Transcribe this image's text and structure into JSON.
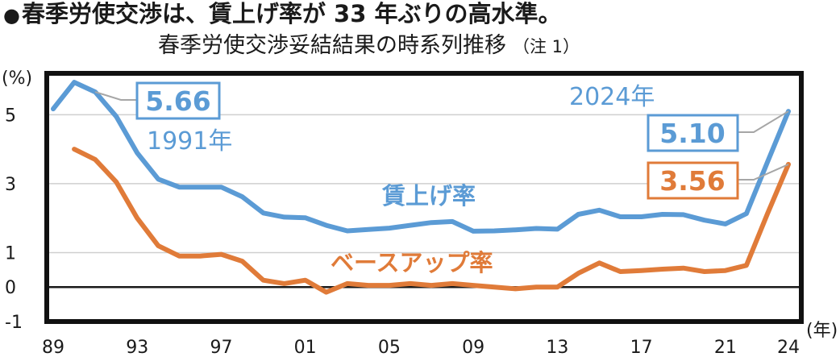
{
  "header": {
    "bullet": "●",
    "headline": "春季労使交渉は、賃上げ率が 33 年ぶりの高水準。",
    "subtitle": "春季労使交渉妥結結果の時系列推移",
    "subtitle_note": "（注 1）"
  },
  "chart_data": {
    "type": "line",
    "y_unit_label": "(%)",
    "x_unit_label": "(年)",
    "ylim": [
      -1,
      6.2
    ],
    "xlim": [
      1989,
      2024
    ],
    "x_ticks": [
      {
        "value": 1989,
        "label": "89"
      },
      {
        "value": 1993,
        "label": "93"
      },
      {
        "value": 1997,
        "label": "97"
      },
      {
        "value": 2001,
        "label": "01"
      },
      {
        "value": 2005,
        "label": "05"
      },
      {
        "value": 2009,
        "label": "09"
      },
      {
        "value": 2013,
        "label": "13"
      },
      {
        "value": 2017,
        "label": "17"
      },
      {
        "value": 2021,
        "label": "21"
      },
      {
        "value": 2024,
        "label": "24"
      }
    ],
    "y_ticks": [
      {
        "value": 5,
        "label": "5"
      },
      {
        "value": 3,
        "label": "3"
      },
      {
        "value": 1,
        "label": "1"
      },
      {
        "value": 0,
        "label": "0"
      },
      {
        "value": -1,
        "label": "-1"
      }
    ],
    "grid": "horizontal",
    "zero_line": true,
    "series": [
      {
        "name": "賃上げ率",
        "color": "#5b9bd5",
        "x": [
          1989,
          1990,
          1991,
          1992,
          1993,
          1994,
          1995,
          1996,
          1997,
          1998,
          1999,
          2000,
          2001,
          2002,
          2003,
          2004,
          2005,
          2006,
          2007,
          2008,
          2009,
          2010,
          2011,
          2012,
          2013,
          2014,
          2015,
          2016,
          2017,
          2018,
          2019,
          2020,
          2021,
          2022,
          2023,
          2024
        ],
        "values": [
          5.17,
          5.94,
          5.66,
          4.95,
          3.89,
          3.13,
          2.9,
          2.9,
          2.9,
          2.62,
          2.15,
          2.03,
          2.01,
          1.79,
          1.63,
          1.67,
          1.71,
          1.79,
          1.87,
          1.9,
          1.62,
          1.63,
          1.66,
          1.7,
          1.68,
          2.11,
          2.23,
          2.04,
          2.04,
          2.11,
          2.1,
          1.94,
          1.83,
          2.13,
          3.62,
          5.1
        ]
      },
      {
        "name": "ベースアップ率",
        "color": "#e07b39",
        "x": [
          1990,
          1991,
          1992,
          1993,
          1994,
          1995,
          1996,
          1997,
          1998,
          1999,
          2000,
          2001,
          2002,
          2003,
          2004,
          2005,
          2006,
          2007,
          2008,
          2009,
          2010,
          2011,
          2012,
          2013,
          2014,
          2015,
          2016,
          2017,
          2018,
          2019,
          2020,
          2021,
          2022,
          2023,
          2024
        ],
        "values": [
          4.0,
          3.7,
          3.05,
          2.0,
          1.2,
          0.9,
          0.9,
          0.95,
          0.75,
          0.2,
          0.1,
          0.2,
          -0.15,
          0.1,
          0.05,
          0.05,
          0.1,
          0.05,
          0.1,
          0.05,
          0.0,
          -0.05,
          0.0,
          0.0,
          0.4,
          0.7,
          0.45,
          0.48,
          0.52,
          0.55,
          0.45,
          0.48,
          0.63,
          2.12,
          3.56
        ]
      }
    ],
    "annotations": {
      "peak_value": "5.66",
      "peak_label": "1991年",
      "latest_label": "2024年",
      "latest_wage": "5.10",
      "latest_base": "3.56",
      "wage_series_label": "賃上げ率",
      "base_series_label": "ベースアップ率"
    }
  }
}
